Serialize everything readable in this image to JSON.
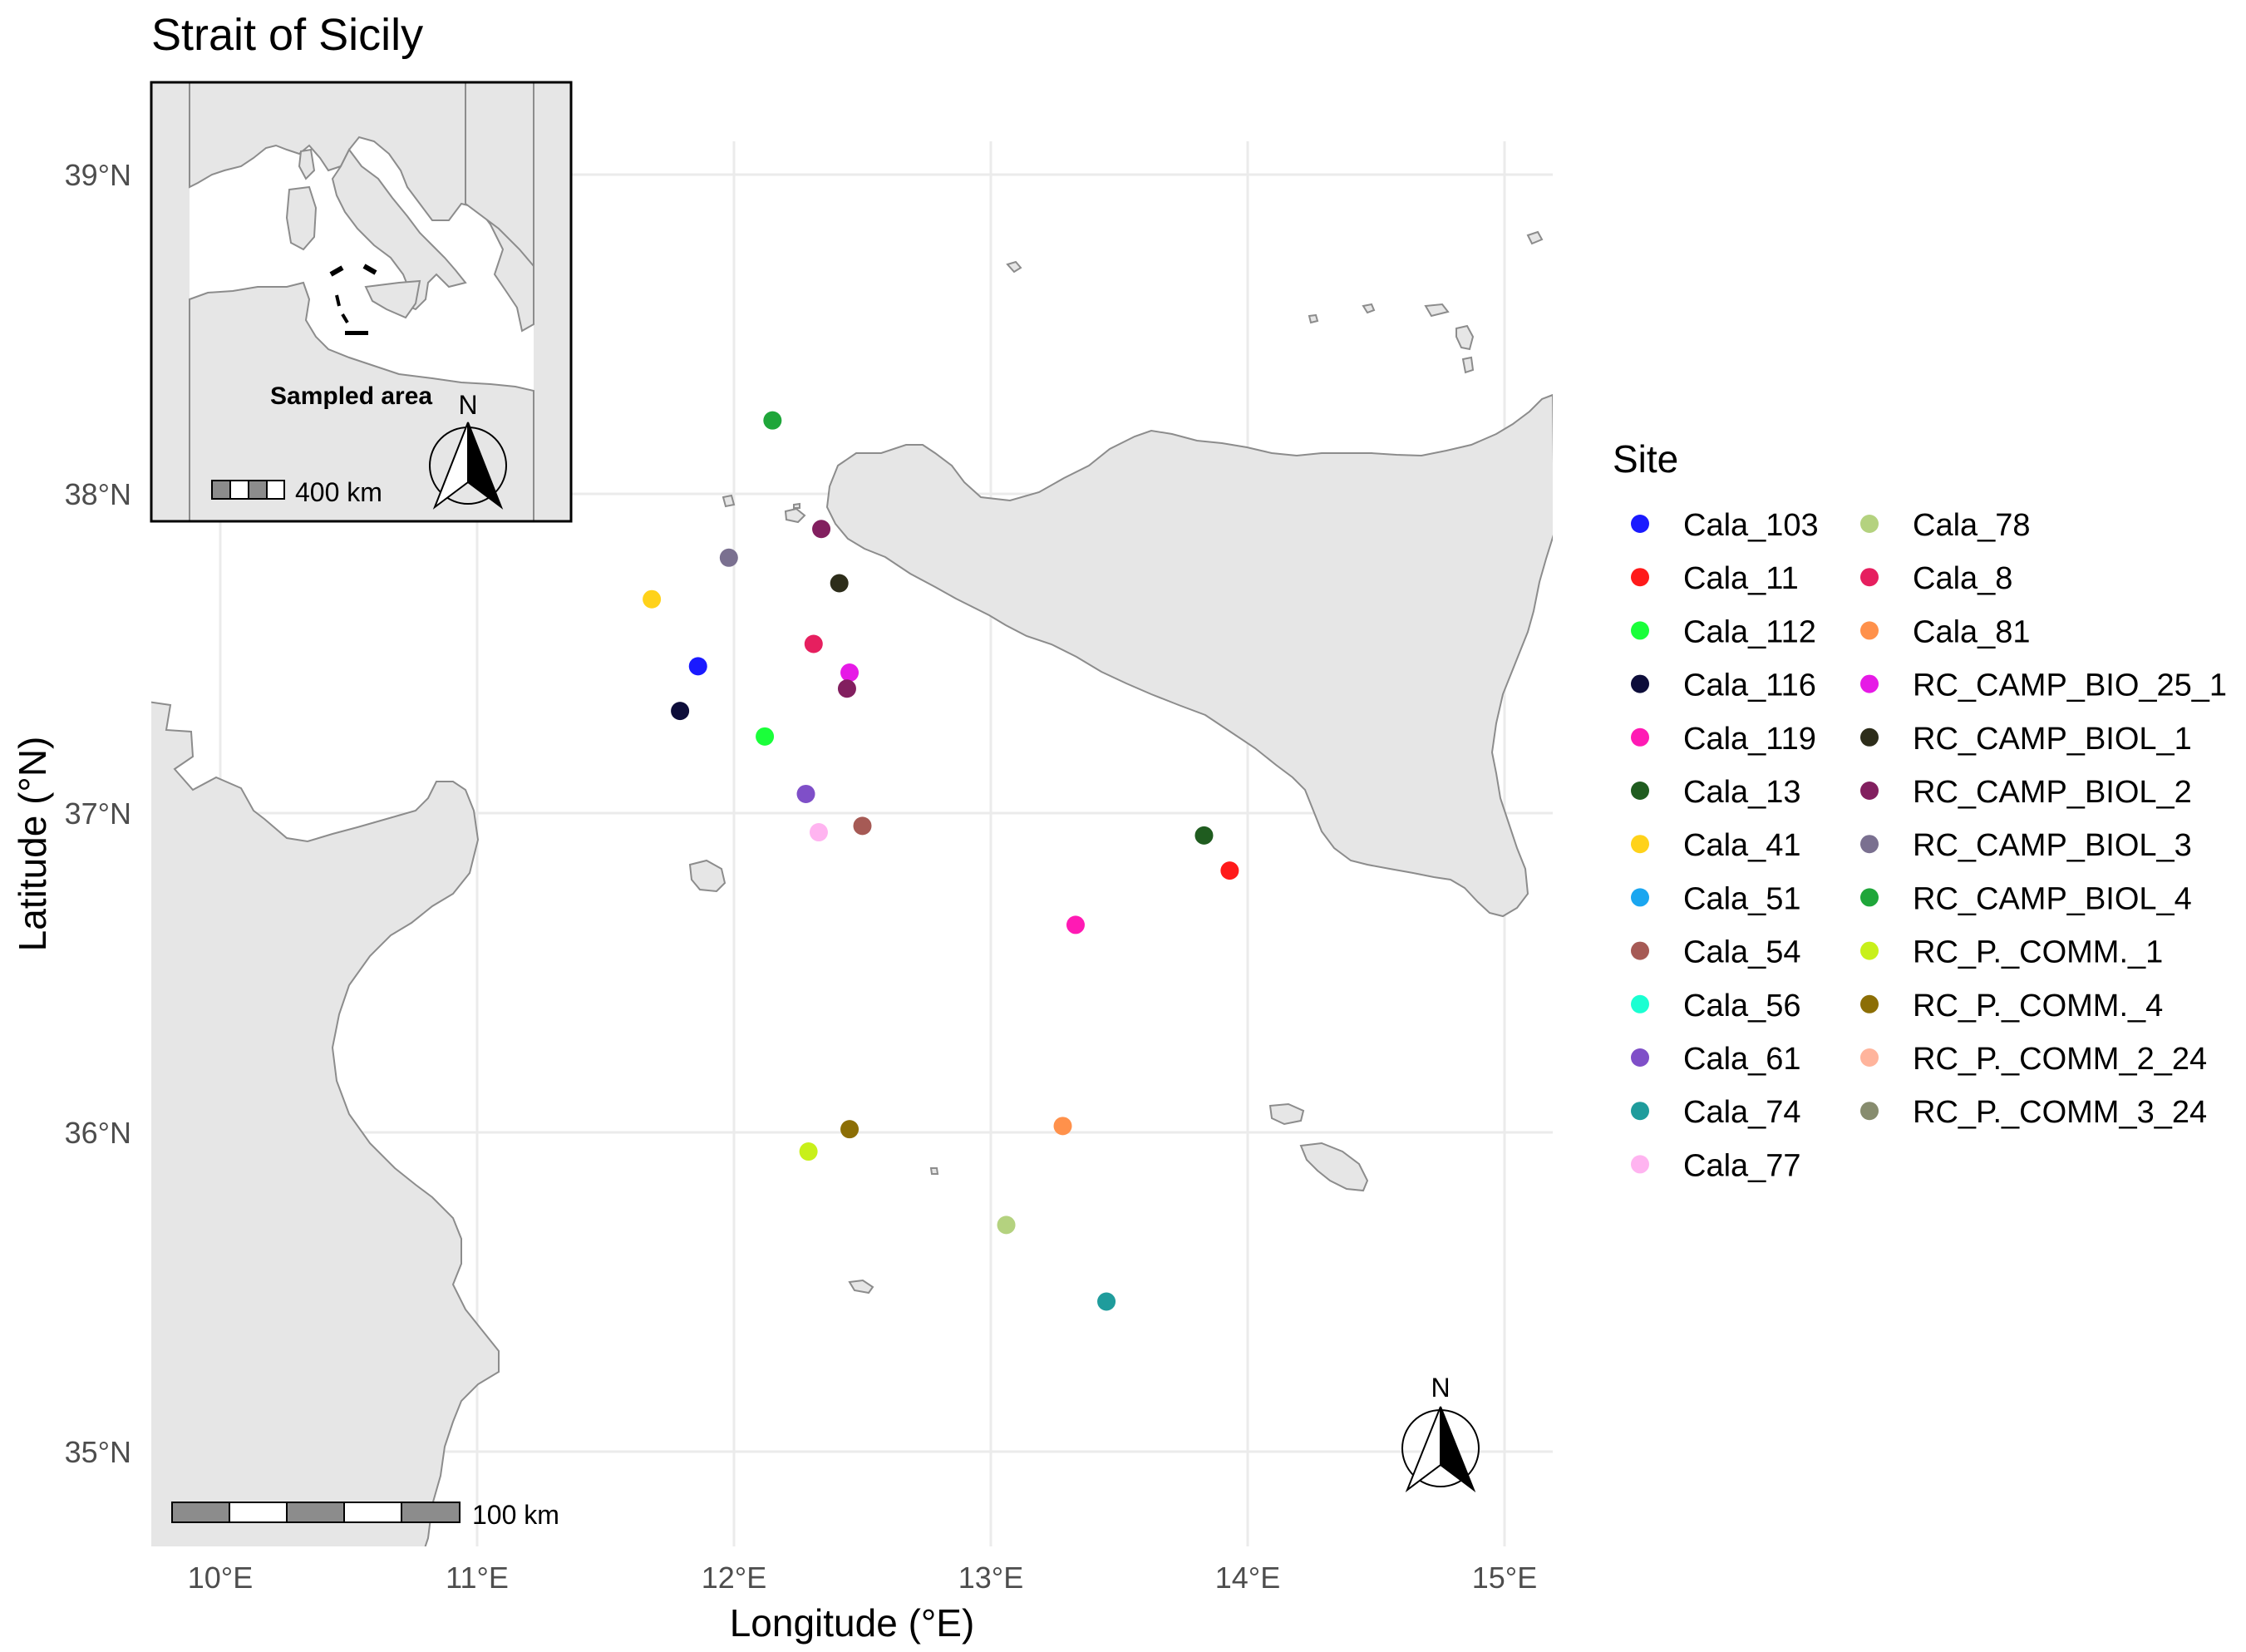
{
  "title": "Strait of Sicily",
  "x_axis": {
    "label": "Longitude (°E)",
    "ticks": [
      "10°E",
      "11°E",
      "12°E",
      "13°E",
      "14°E",
      "15°E"
    ],
    "values": [
      10,
      11,
      12,
      13,
      14,
      15
    ]
  },
  "y_axis": {
    "label": "Latitude (°N)",
    "ticks": [
      "35°N",
      "36°N",
      "37°N",
      "38°N",
      "39°N"
    ],
    "values": [
      35,
      36,
      37,
      38,
      39
    ]
  },
  "extent": {
    "lon_min": 9.8,
    "lon_max": 15.3,
    "lat_min": 34.7,
    "lat_max": 39.3
  },
  "legend": {
    "title": "Site",
    "placement": "right",
    "entries": [
      {
        "name": "Cala_103",
        "color": "#1a1aff"
      },
      {
        "name": "Cala_11",
        "color": "#ff1a1a"
      },
      {
        "name": "Cala_112",
        "color": "#1aff3a"
      },
      {
        "name": "Cala_116",
        "color": "#0d0d3a"
      },
      {
        "name": "Cala_119",
        "color": "#ff1ab4"
      },
      {
        "name": "Cala_13",
        "color": "#1f5c1f"
      },
      {
        "name": "Cala_41",
        "color": "#ffd21a"
      },
      {
        "name": "Cala_51",
        "color": "#1aa6f0"
      },
      {
        "name": "Cala_54",
        "color": "#a65a55"
      },
      {
        "name": "Cala_56",
        "color": "#1affd2"
      },
      {
        "name": "Cala_61",
        "color": "#7f4fc8"
      },
      {
        "name": "Cala_74",
        "color": "#1f9c9c"
      },
      {
        "name": "Cala_77",
        "color": "#ffb4f0"
      },
      {
        "name": "Cala_78",
        "color": "#b4d27f"
      },
      {
        "name": "Cala_8",
        "color": "#e61f5f"
      },
      {
        "name": "Cala_81",
        "color": "#ff914b"
      },
      {
        "name": "RC_CAMP_BIO_25_1",
        "color": "#e61ae6"
      },
      {
        "name": "RC_CAMP_BIOL_1",
        "color": "#2d2d1a"
      },
      {
        "name": "RC_CAMP_BIOL_2",
        "color": "#821f5f"
      },
      {
        "name": "RC_CAMP_BIOL_3",
        "color": "#7a7090"
      },
      {
        "name": "RC_CAMP_BIOL_4",
        "color": "#1fa63a"
      },
      {
        "name": "RC_P._COMM._1",
        "color": "#c8f01a"
      },
      {
        "name": "RC_P._COMM._4",
        "color": "#8c6e05"
      },
      {
        "name": "RC_P._COMM_2_24",
        "color": "#ffb49c"
      },
      {
        "name": "RC_P._COMM_3_24",
        "color": "#878c6e"
      }
    ]
  },
  "points": [
    {
      "site": "RC_CAMP_BIOL_4",
      "lon": 12.15,
      "lat": 38.23
    },
    {
      "site": "RC_CAMP_BIOL_2",
      "lon": 12.34,
      "lat": 37.89
    },
    {
      "site": "RC_CAMP_BIOL_3",
      "lon": 11.98,
      "lat": 37.8
    },
    {
      "site": "RC_CAMP_BIOL_1",
      "lon": 12.41,
      "lat": 37.72
    },
    {
      "site": "Cala_41",
      "lon": 11.68,
      "lat": 37.67
    },
    {
      "site": "Cala_8",
      "lon": 12.31,
      "lat": 37.53
    },
    {
      "site": "Cala_103",
      "lon": 11.86,
      "lat": 37.46
    },
    {
      "site": "RC_CAMP_BIO_25_1",
      "lon": 12.45,
      "lat": 37.44
    },
    {
      "site": "RC_CAMP_BIOL_2",
      "lon": 12.44,
      "lat": 37.39
    },
    {
      "site": "Cala_116",
      "lon": 11.79,
      "lat": 37.32
    },
    {
      "site": "Cala_112",
      "lon": 12.12,
      "lat": 37.24
    },
    {
      "site": "Cala_61",
      "lon": 12.28,
      "lat": 37.06
    },
    {
      "site": "Cala_54",
      "lon": 12.5,
      "lat": 36.96
    },
    {
      "site": "Cala_77",
      "lon": 12.33,
      "lat": 36.94
    },
    {
      "site": "Cala_13",
      "lon": 13.83,
      "lat": 36.93
    },
    {
      "site": "Cala_11",
      "lon": 13.93,
      "lat": 36.82
    },
    {
      "site": "Cala_119",
      "lon": 13.33,
      "lat": 36.65
    },
    {
      "site": "Cala_81",
      "lon": 13.28,
      "lat": 36.02
    },
    {
      "site": "RC_P._COMM._4",
      "lon": 12.45,
      "lat": 36.01
    },
    {
      "site": "RC_P._COMM._1",
      "lon": 12.29,
      "lat": 35.94
    },
    {
      "site": "Cala_78",
      "lon": 13.06,
      "lat": 35.71
    },
    {
      "site": "Cala_74",
      "lon": 13.45,
      "lat": 35.47
    }
  ],
  "scale_bar": {
    "label": "100 km"
  },
  "north_arrow": {
    "label": "N"
  },
  "inset": {
    "label": "Sampled area",
    "scale_label": "400 km",
    "north_label": "N"
  }
}
